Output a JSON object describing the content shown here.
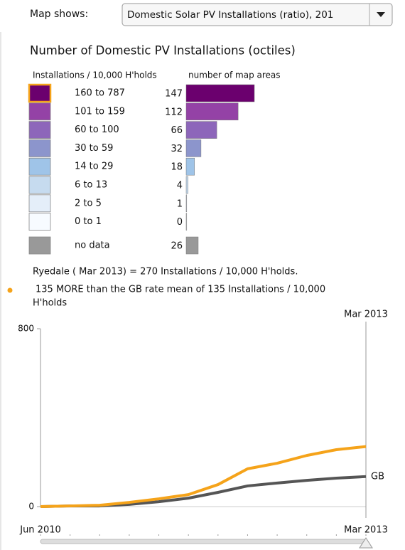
{
  "selector": {
    "label": "Map shows:",
    "value": "Domestic Solar PV Installations (ratio), 201"
  },
  "legend": {
    "title": "Number of Domestic PV Installations (octiles)",
    "column_headers": [
      "Installations / 10,000 H'holds",
      "number of map areas"
    ],
    "rows": [
      {
        "label": "160 to 787",
        "count": 147,
        "color": "#6b006e"
      },
      {
        "label": "101 to 159",
        "count": 112,
        "color": "#9442a6"
      },
      {
        "label": "60 to 100",
        "count": 66,
        "color": "#8d66ba"
      },
      {
        "label": "30 to 59",
        "count": 32,
        "color": "#8c95cc"
      },
      {
        "label": "14 to 29",
        "count": 18,
        "color": "#9fc4e8"
      },
      {
        "label": "6 to 13",
        "count": 4,
        "color": "#c6dbef"
      },
      {
        "label": "2 to 5",
        "count": 1,
        "color": "#e4eef9"
      },
      {
        "label": "0 to 1",
        "count": 0,
        "color": "#f7fbff"
      }
    ],
    "no_data": {
      "label": "no data",
      "count": 26,
      "color": "#999999"
    }
  },
  "info": {
    "summary": "Ryedale ( Mar 2013) = 270 Installations / 10,000 H'holds.",
    "comparison": [
      "135 MORE than the GB rate mean of 135 Installations / 10,000",
      "H'holds"
    ]
  },
  "chart_data": {
    "type": "line",
    "cursor_label": "Mar 2013",
    "categories": [
      "Jun 2010",
      null,
      null,
      null,
      null,
      null,
      null,
      null,
      null,
      null,
      null,
      "Mar 2013"
    ],
    "series": [
      {
        "color": "#f5a31a",
        "values": [
          0,
          3,
          6,
          19,
          35,
          54,
          99,
          170,
          195,
          230,
          256,
          270
        ]
      },
      {
        "name": "GB",
        "color": "#555555",
        "values": [
          0,
          3,
          3,
          10,
          22,
          38,
          64,
          93,
          106,
          118,
          128,
          135
        ]
      }
    ],
    "ylim": [
      0,
      800
    ],
    "yticks": [
      0,
      800
    ]
  }
}
